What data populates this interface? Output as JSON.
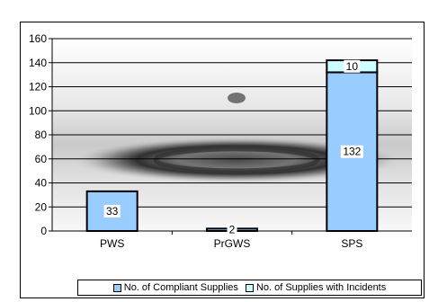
{
  "chart_data": {
    "type": "bar",
    "stacked": true,
    "categories": [
      "PWS",
      "PrGWS",
      "SPS"
    ],
    "series": [
      {
        "name": "No. of Compliant Supplies",
        "values": [
          33,
          2,
          132
        ],
        "color": "#99ccff"
      },
      {
        "name": "No. of Supplies with Incidents",
        "values": [
          0,
          0,
          10
        ],
        "color": "#ccffff"
      }
    ],
    "data_labels": [
      [
        "33",
        "2",
        "132"
      ],
      [
        "",
        "",
        "10"
      ]
    ],
    "ylim": [
      0,
      160
    ],
    "yticks": [
      0,
      20,
      40,
      60,
      80,
      100,
      120,
      140,
      160
    ],
    "grid": true,
    "legend_position": "bottom",
    "title": "",
    "xlabel": "",
    "ylabel": ""
  }
}
